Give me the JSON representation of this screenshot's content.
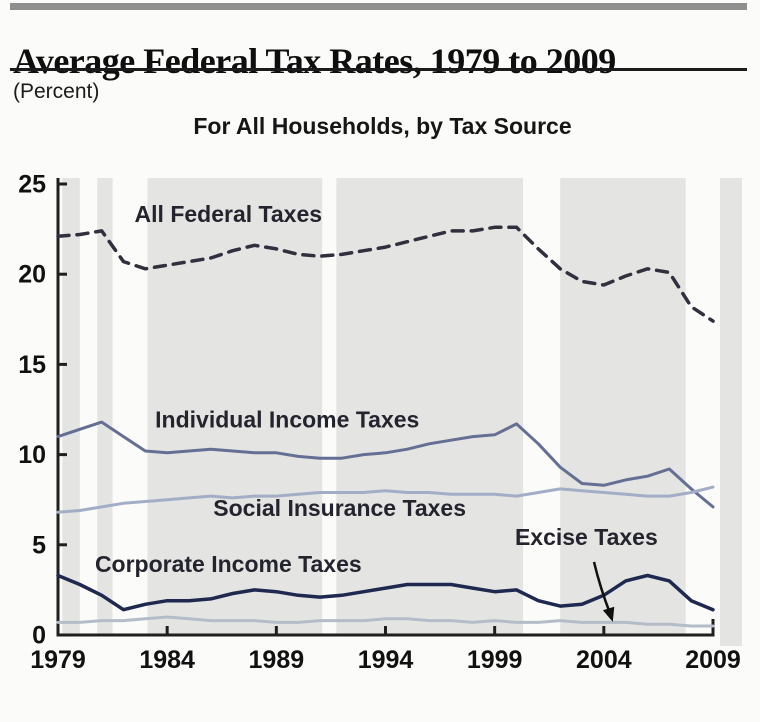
{
  "header": {
    "title": "Average Federal Tax Rates, 1979 to 2009",
    "units_label": "(Percent)",
    "chart_title": "For All Households, by Tax Source"
  },
  "colors": {
    "page_background": "#fbfbf9",
    "shaded_panel": "#e4e4e2",
    "axis": "#1f1f1f",
    "tick_label": "#111111",
    "series_label": "#24242e",
    "top_bar": "#8f8f8f",
    "title_rule": "#1b1b1b"
  },
  "chart_data": {
    "type": "line",
    "title": "For All Households, by Tax Source",
    "xlabel": "",
    "ylabel": "Percent",
    "xlim": [
      1979,
      2009
    ],
    "ylim": [
      0,
      25
    ],
    "x_ticks": [
      1979,
      1984,
      1989,
      1994,
      1999,
      2004,
      2009
    ],
    "y_ticks": [
      0,
      5,
      10,
      15,
      20,
      25
    ],
    "grid": false,
    "legend_position": "inline-labels",
    "shaded_year_ranges": [
      [
        1979.2,
        1980.0
      ],
      [
        1980.8,
        1981.5
      ],
      [
        1983.1,
        1991.1
      ],
      [
        1991.75,
        2000.3
      ],
      [
        2002.0,
        2007.75
      ]
    ],
    "years": [
      1979,
      1980,
      1981,
      1982,
      1983,
      1984,
      1985,
      1986,
      1987,
      1988,
      1989,
      1990,
      1991,
      1992,
      1993,
      1994,
      1995,
      1996,
      1997,
      1998,
      1999,
      2000,
      2001,
      2002,
      2003,
      2004,
      2005,
      2006,
      2007,
      2008,
      2009
    ],
    "series": [
      {
        "name": "All Federal Taxes",
        "style": "dashed",
        "color": "#30303f",
        "stroke_width": 3.5,
        "label": "All Federal Taxes",
        "label_anchor": {
          "year": 1986.8,
          "value": 22.9
        },
        "values": [
          22.1,
          22.2,
          22.4,
          20.7,
          20.3,
          20.5,
          20.7,
          20.9,
          21.3,
          21.6,
          21.4,
          21.1,
          21.0,
          21.1,
          21.3,
          21.5,
          21.8,
          22.1,
          22.4,
          22.4,
          22.6,
          22.6,
          21.4,
          20.3,
          19.6,
          19.4,
          19.9,
          20.3,
          20.1,
          18.2,
          17.4
        ]
      },
      {
        "name": "Individual Income Taxes",
        "style": "solid",
        "color": "#656f94",
        "stroke_width": 3,
        "label": "Individual Income Taxes",
        "label_anchor": {
          "year": 1989.5,
          "value": 11.5
        },
        "values": [
          11.0,
          11.4,
          11.8,
          11.0,
          10.2,
          10.1,
          10.2,
          10.3,
          10.2,
          10.1,
          10.1,
          9.9,
          9.8,
          9.8,
          10.0,
          10.1,
          10.3,
          10.6,
          10.8,
          11.0,
          11.1,
          11.7,
          10.6,
          9.3,
          8.4,
          8.3,
          8.6,
          8.8,
          9.2,
          8.1,
          7.1
        ]
      },
      {
        "name": "Social Insurance Taxes",
        "style": "solid",
        "color": "#a3aec6",
        "stroke_width": 3,
        "label": "Social Insurance Taxes",
        "label_anchor": {
          "year": 1991.9,
          "value": 6.6
        },
        "values": [
          6.8,
          6.9,
          7.1,
          7.3,
          7.4,
          7.5,
          7.6,
          7.7,
          7.6,
          7.7,
          7.7,
          7.8,
          7.9,
          7.9,
          7.9,
          8.0,
          7.9,
          7.9,
          7.8,
          7.8,
          7.8,
          7.7,
          7.9,
          8.1,
          8.0,
          7.9,
          7.8,
          7.7,
          7.7,
          7.9,
          8.2
        ]
      },
      {
        "name": "Corporate Income Taxes",
        "style": "solid",
        "color": "#1f2950",
        "stroke_width": 3.5,
        "label": "Corporate Income Taxes",
        "label_anchor": {
          "year": 1986.8,
          "value": 3.5
        },
        "values": [
          3.3,
          2.8,
          2.2,
          1.4,
          1.7,
          1.9,
          1.9,
          2.0,
          2.3,
          2.5,
          2.4,
          2.2,
          2.1,
          2.2,
          2.4,
          2.6,
          2.8,
          2.8,
          2.8,
          2.6,
          2.4,
          2.5,
          1.9,
          1.6,
          1.7,
          2.2,
          3.0,
          3.3,
          3.0,
          1.9,
          1.4
        ]
      },
      {
        "name": "Excise Taxes",
        "style": "solid",
        "color": "#b5bcc9",
        "stroke_width": 3,
        "label": "Excise Taxes",
        "label_anchor": {
          "year": 2003.2,
          "value": 5.0
        },
        "values": [
          0.7,
          0.7,
          0.8,
          0.8,
          0.9,
          1.0,
          0.9,
          0.8,
          0.8,
          0.8,
          0.7,
          0.7,
          0.8,
          0.8,
          0.8,
          0.9,
          0.9,
          0.8,
          0.8,
          0.7,
          0.8,
          0.7,
          0.7,
          0.8,
          0.7,
          0.7,
          0.7,
          0.6,
          0.6,
          0.5,
          0.5
        ]
      }
    ],
    "annotations": [
      {
        "type": "arrow",
        "target_series": "Excise Taxes",
        "from": {
          "year": 2003.55,
          "value": 4.05
        },
        "to": {
          "year": 2004.3,
          "value": 1.15
        }
      }
    ]
  }
}
